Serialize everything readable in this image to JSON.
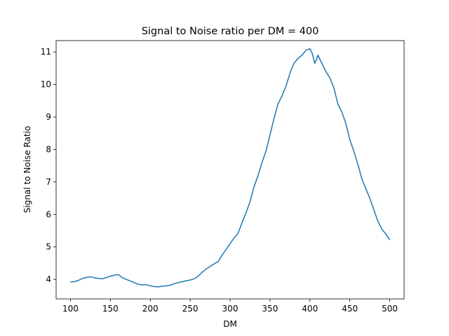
{
  "chart_data": {
    "type": "line",
    "title": "Signal to Noise ratio per DM = 400",
    "xlabel": "DM",
    "ylabel": "Signal to Noise Ratio",
    "xlim": [
      82,
      518
    ],
    "ylim": [
      3.4,
      11.35
    ],
    "xticks": [
      100,
      150,
      200,
      250,
      300,
      350,
      400,
      450,
      500
    ],
    "yticks": [
      4,
      5,
      6,
      7,
      8,
      9,
      10,
      11
    ],
    "grid": false,
    "color": "#1f77b4",
    "series": [
      {
        "x": [
          100,
          105,
          110,
          115,
          120,
          125,
          130,
          135,
          140,
          145,
          150,
          155,
          160,
          165,
          170,
          175,
          180,
          185,
          190,
          195,
          200,
          205,
          210,
          215,
          220,
          225,
          230,
          235,
          240,
          245,
          250,
          255,
          260,
          265,
          270,
          275,
          280,
          285,
          290,
          295,
          300,
          305,
          310,
          315,
          320,
          325,
          330,
          335,
          340,
          345,
          350,
          355,
          360,
          365,
          370,
          375,
          380,
          385,
          390,
          395,
          400,
          403,
          406,
          408,
          410,
          415,
          420,
          425,
          430,
          435,
          440,
          445,
          450,
          455,
          460,
          465,
          470,
          475,
          480,
          485,
          490,
          495,
          500
        ],
        "y": [
          3.92,
          3.93,
          3.97,
          4.03,
          4.06,
          4.08,
          4.05,
          4.03,
          4.02,
          4.06,
          4.1,
          4.13,
          4.15,
          4.05,
          4.0,
          3.95,
          3.9,
          3.85,
          3.83,
          3.84,
          3.8,
          3.78,
          3.77,
          3.79,
          3.8,
          3.82,
          3.87,
          3.9,
          3.93,
          3.96,
          3.98,
          4.02,
          4.1,
          4.22,
          4.32,
          4.4,
          4.48,
          4.55,
          4.75,
          4.92,
          5.1,
          5.28,
          5.42,
          5.75,
          6.05,
          6.4,
          6.85,
          7.2,
          7.6,
          7.95,
          8.45,
          8.95,
          9.4,
          9.65,
          9.95,
          10.35,
          10.65,
          10.8,
          10.9,
          11.05,
          11.1,
          10.95,
          10.65,
          10.75,
          10.9,
          10.65,
          10.4,
          10.2,
          9.9,
          9.4,
          9.15,
          8.8,
          8.3,
          7.95,
          7.55,
          7.1,
          6.8,
          6.5,
          6.15,
          5.8,
          5.55,
          5.4,
          5.22
        ]
      }
    ]
  }
}
